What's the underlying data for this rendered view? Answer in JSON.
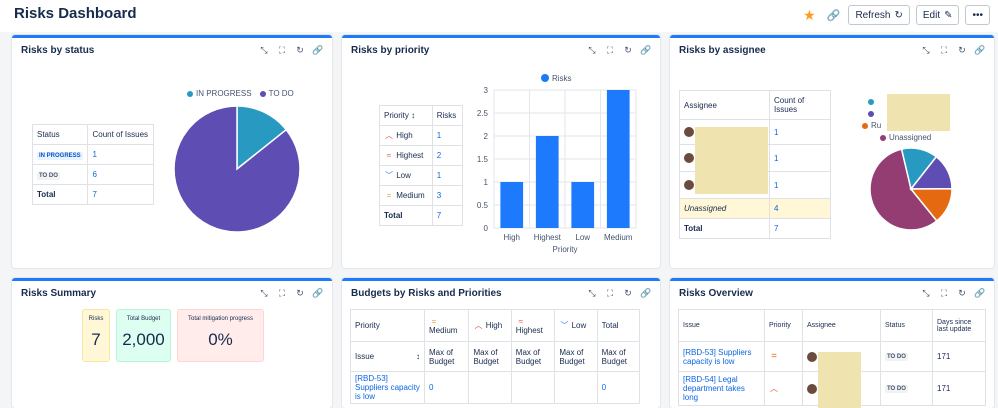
{
  "header": {
    "title": "Risks Dashboard",
    "refresh_label": "Refresh",
    "edit_label": "Edit"
  },
  "colors": {
    "accent": "#1d7afc",
    "in_progress": "#2899c1",
    "to_do": "#5e4db2",
    "bar": "#1d7afc",
    "unassigned": "#943d73",
    "orange": "#e56910"
  },
  "status_panel": {
    "title": "Risks by status",
    "headers": [
      "Status",
      "Count of Issues"
    ],
    "rows": [
      {
        "status": "IN PROGRESS",
        "count": "1"
      },
      {
        "status": "TO DO",
        "count": "6"
      }
    ],
    "total_label": "Total",
    "total": "7",
    "legend": [
      "IN PROGRESS",
      "TO DO"
    ]
  },
  "priority_panel": {
    "title": "Risks by priority",
    "headers": [
      "Priority",
      "Risks"
    ],
    "rows": [
      {
        "priority": "High",
        "count": "1"
      },
      {
        "priority": "Highest",
        "count": "2"
      },
      {
        "priority": "Low",
        "count": "1"
      },
      {
        "priority": "Medium",
        "count": "3"
      }
    ],
    "total_label": "Total",
    "total": "7"
  },
  "assignee_panel": {
    "title": "Risks by assignee",
    "headers": [
      "Assignee",
      "Count of Issues"
    ],
    "counts": [
      "1",
      "1",
      "1"
    ],
    "unassigned_label": "Unassigned",
    "unassigned_count": "4",
    "total_label": "Total",
    "total": "7",
    "legend_partial": "Ru",
    "legend_unassigned": "Unassigned"
  },
  "summary_panel": {
    "title": "Risks Summary",
    "cards": [
      {
        "label": "Risks",
        "value": "7",
        "bg": "#fff7d6"
      },
      {
        "label": "Total Budget",
        "value": "2,000",
        "bg": "#dcfff1"
      },
      {
        "label": "Total mitigation progress",
        "value": "0%",
        "bg": "#ffeceb"
      }
    ]
  },
  "budget_panel": {
    "title": "Budgets by Risks and Priorities",
    "priority_label": "Priority",
    "issue_label": "Issue",
    "columns": [
      "Medium",
      "High",
      "Highest",
      "Low",
      "Total"
    ],
    "sub_label": "Max of Budget",
    "rows": [
      {
        "issue": "[RBD-53] Suppliers capacity is low",
        "medium": "0",
        "total": "0"
      }
    ]
  },
  "overview_panel": {
    "title": "Risks Overview",
    "headers": [
      "Issue",
      "Priority",
      "Assignee",
      "Status",
      "Days since last update"
    ],
    "rows": [
      {
        "issue": "[RBD-53] Suppliers capacity is low",
        "status": "TO DO",
        "days": "171"
      },
      {
        "issue": "[RBD-54] Legal department takes long",
        "status": "TO DO",
        "days": "171"
      }
    ]
  },
  "chart_data": [
    {
      "type": "pie",
      "title": "",
      "labels": [
        "IN PROGRESS",
        "TO DO"
      ],
      "values": [
        1,
        6
      ],
      "colors": [
        "#2899c1",
        "#5e4db2"
      ],
      "legend": "top"
    },
    {
      "type": "bar",
      "title": "",
      "categories": [
        "High",
        "Highest",
        "Low",
        "Medium"
      ],
      "series": [
        {
          "name": "Risks",
          "values": [
            1,
            2,
            1,
            3
          ]
        }
      ],
      "xlabel": "Priority",
      "ylabel": "",
      "ylim": [
        0,
        3
      ],
      "yticks": [
        "0",
        "0.5",
        "1",
        "1.5",
        "2",
        "2.5",
        "3"
      ],
      "grid": true,
      "legend": "top"
    },
    {
      "type": "pie",
      "title": "",
      "labels": [
        "Unassigned",
        "",
        "",
        ""
      ],
      "values": [
        4,
        1,
        1,
        1
      ],
      "colors": [
        "#943d73",
        "#2899c1",
        "#5e4db2",
        "#e56910"
      ],
      "legend": "top"
    }
  ]
}
